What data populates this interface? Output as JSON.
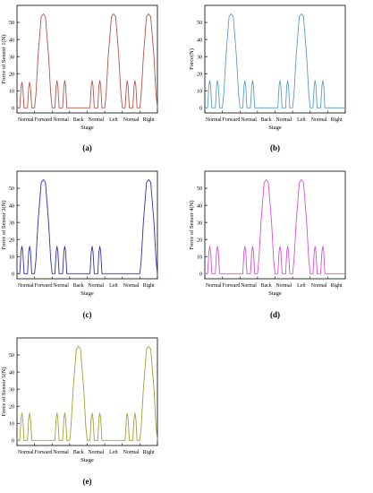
{
  "stages": [
    "Normal",
    "Forward",
    "Normal",
    "Back",
    "Normal",
    "Left",
    "Normal",
    "Right"
  ],
  "stage_axis_label": "Stage",
  "chart_data": [
    {
      "panel": "(a)",
      "type": "line",
      "ylabel": "Force of Sensor 1(N)",
      "xlabel": "Stage",
      "color": "#b5544a",
      "ylim": [
        -3,
        60
      ],
      "yticks": [
        0,
        10,
        20,
        30,
        40,
        50
      ],
      "grid": false,
      "categories": [
        "Normal",
        "Forward",
        "Normal",
        "Back",
        "Normal",
        "Left",
        "Normal",
        "Right"
      ],
      "values": [
        15,
        55,
        16,
        0,
        16,
        55,
        16,
        55
      ]
    },
    {
      "panel": "(b)",
      "type": "line",
      "ylabel": "Force(N)",
      "xlabel": "Stage",
      "color": "#5b9cc6",
      "ylim": [
        -3,
        60
      ],
      "yticks": [
        0,
        10,
        20,
        30,
        40,
        50
      ],
      "grid": false,
      "categories": [
        "Normal",
        "Forward",
        "Normal",
        "Back",
        "Normal",
        "Left",
        "Normal",
        "Right"
      ],
      "values": [
        16,
        55,
        16,
        0,
        16,
        55,
        16,
        0
      ]
    },
    {
      "panel": "(c)",
      "type": "line",
      "ylabel": "Force of Sensor 3(N)",
      "xlabel": "Stage",
      "color": "#2b2fb3",
      "ylim": [
        -3,
        60
      ],
      "yticks": [
        0,
        10,
        20,
        30,
        40,
        50
      ],
      "grid": false,
      "categories": [
        "Normal",
        "Forward",
        "Normal",
        "Back",
        "Normal",
        "Left",
        "Normal",
        "Right"
      ],
      "values": [
        16,
        55,
        16,
        0,
        16,
        0,
        0,
        55
      ]
    },
    {
      "panel": "(d)",
      "type": "line",
      "ylabel": "Force of Sensor 4(N)",
      "xlabel": "Stage",
      "color": "#d64fd6",
      "ylim": [
        -3,
        60
      ],
      "yticks": [
        0,
        10,
        20,
        30,
        40,
        50
      ],
      "grid": false,
      "categories": [
        "Normal",
        "Forward",
        "Normal",
        "Back",
        "Normal",
        "Left",
        "Normal",
        "Right"
      ],
      "values": [
        16,
        0,
        16,
        55,
        16,
        55,
        16,
        0
      ]
    },
    {
      "panel": "(e)",
      "type": "line",
      "ylabel": "Force of Sensor 5(N)",
      "xlabel": "Stage",
      "color": "#a3a035",
      "ylim": [
        -3,
        60
      ],
      "yticks": [
        0,
        10,
        20,
        30,
        40,
        50
      ],
      "grid": false,
      "categories": [
        "Normal",
        "Forward",
        "Normal",
        "Back",
        "Normal",
        "Left",
        "Normal",
        "Right"
      ],
      "values": [
        16,
        0,
        16,
        55,
        16,
        0,
        16,
        55
      ]
    }
  ]
}
